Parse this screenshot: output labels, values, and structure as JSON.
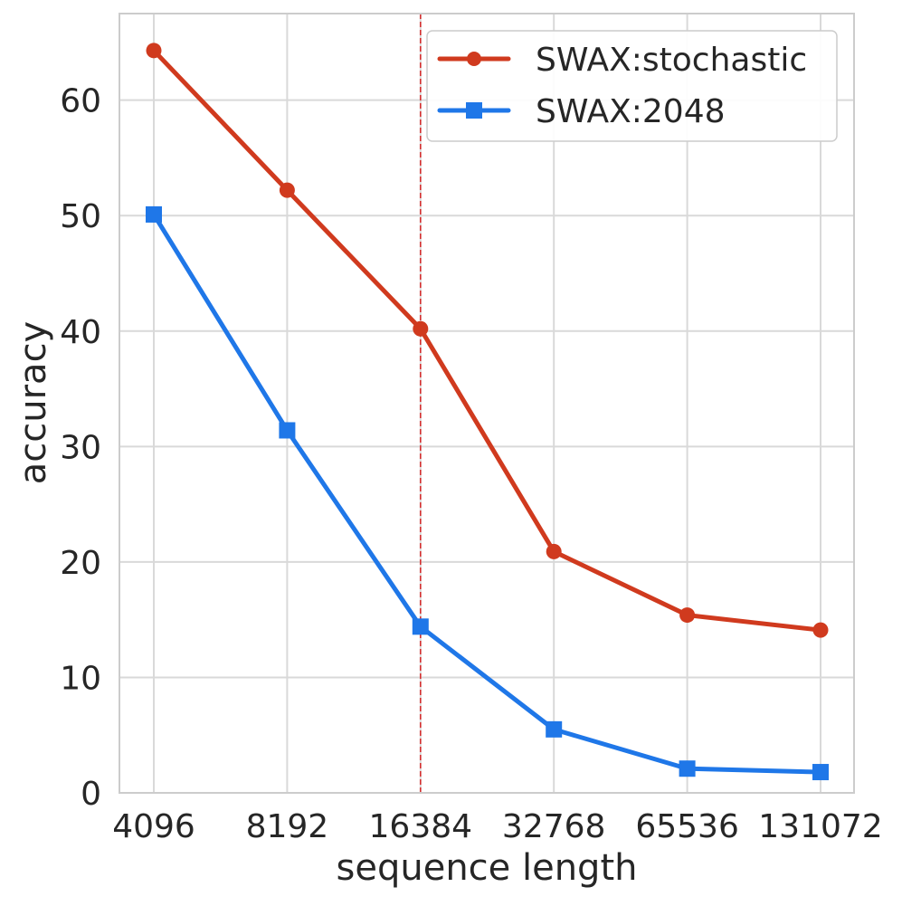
{
  "chart_data": {
    "type": "line",
    "title": "",
    "xlabel": "sequence length",
    "ylabel": "accuracy",
    "categories": [
      "4096",
      "8192",
      "16384",
      "32768",
      "65536",
      "131072"
    ],
    "yticks": [
      "0",
      "10",
      "20",
      "30",
      "40",
      "50",
      "60"
    ],
    "ylim": [
      0,
      67.5
    ],
    "grid": true,
    "legend_position": "top-right",
    "reference_line": {
      "category": "16384",
      "color": "#d62728",
      "style": "dashed"
    },
    "series": [
      {
        "name": "SWAX:stochastic",
        "color": "#d03a1e",
        "marker": "circle",
        "values": [
          64.3,
          52.2,
          40.2,
          20.9,
          15.4,
          14.1
        ]
      },
      {
        "name": "SWAX:2048",
        "color": "#1f77e8",
        "marker": "square",
        "values": [
          50.1,
          31.4,
          14.4,
          5.5,
          2.1,
          1.8
        ]
      }
    ]
  }
}
